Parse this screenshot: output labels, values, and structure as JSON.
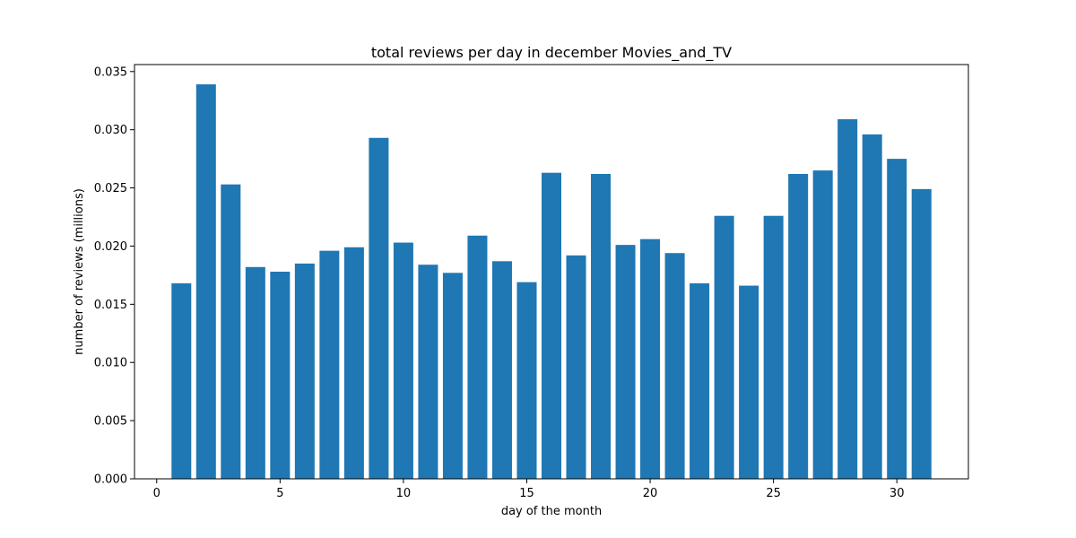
{
  "chart_data": {
    "type": "bar",
    "title": "total reviews per day in december Movies_and_TV",
    "xlabel": "day of the month",
    "ylabel": "number of reviews (millions)",
    "x": [
      1,
      2,
      3,
      4,
      5,
      6,
      7,
      8,
      9,
      10,
      11,
      12,
      13,
      14,
      15,
      16,
      17,
      18,
      19,
      20,
      21,
      22,
      23,
      24,
      25,
      26,
      27,
      28,
      29,
      30,
      31
    ],
    "values": [
      0.0168,
      0.0339,
      0.0253,
      0.0182,
      0.0178,
      0.0185,
      0.0196,
      0.0199,
      0.0293,
      0.0203,
      0.0184,
      0.0177,
      0.0209,
      0.0187,
      0.0169,
      0.0263,
      0.0192,
      0.0262,
      0.0201,
      0.0206,
      0.0194,
      0.0168,
      0.0226,
      0.0166,
      0.0226,
      0.0262,
      0.0265,
      0.0309,
      0.0296,
      0.0275,
      0.0249
    ],
    "xlim": [
      -0.9,
      32.9
    ],
    "ylim": [
      0,
      0.0356
    ],
    "xticks": [
      0,
      5,
      10,
      15,
      20,
      25,
      30
    ],
    "yticks": [
      "0.000",
      "0.005",
      "0.010",
      "0.015",
      "0.020",
      "0.025",
      "0.030",
      "0.035"
    ],
    "bar_color": "#1f77b4",
    "grid": false,
    "legend": "none"
  }
}
